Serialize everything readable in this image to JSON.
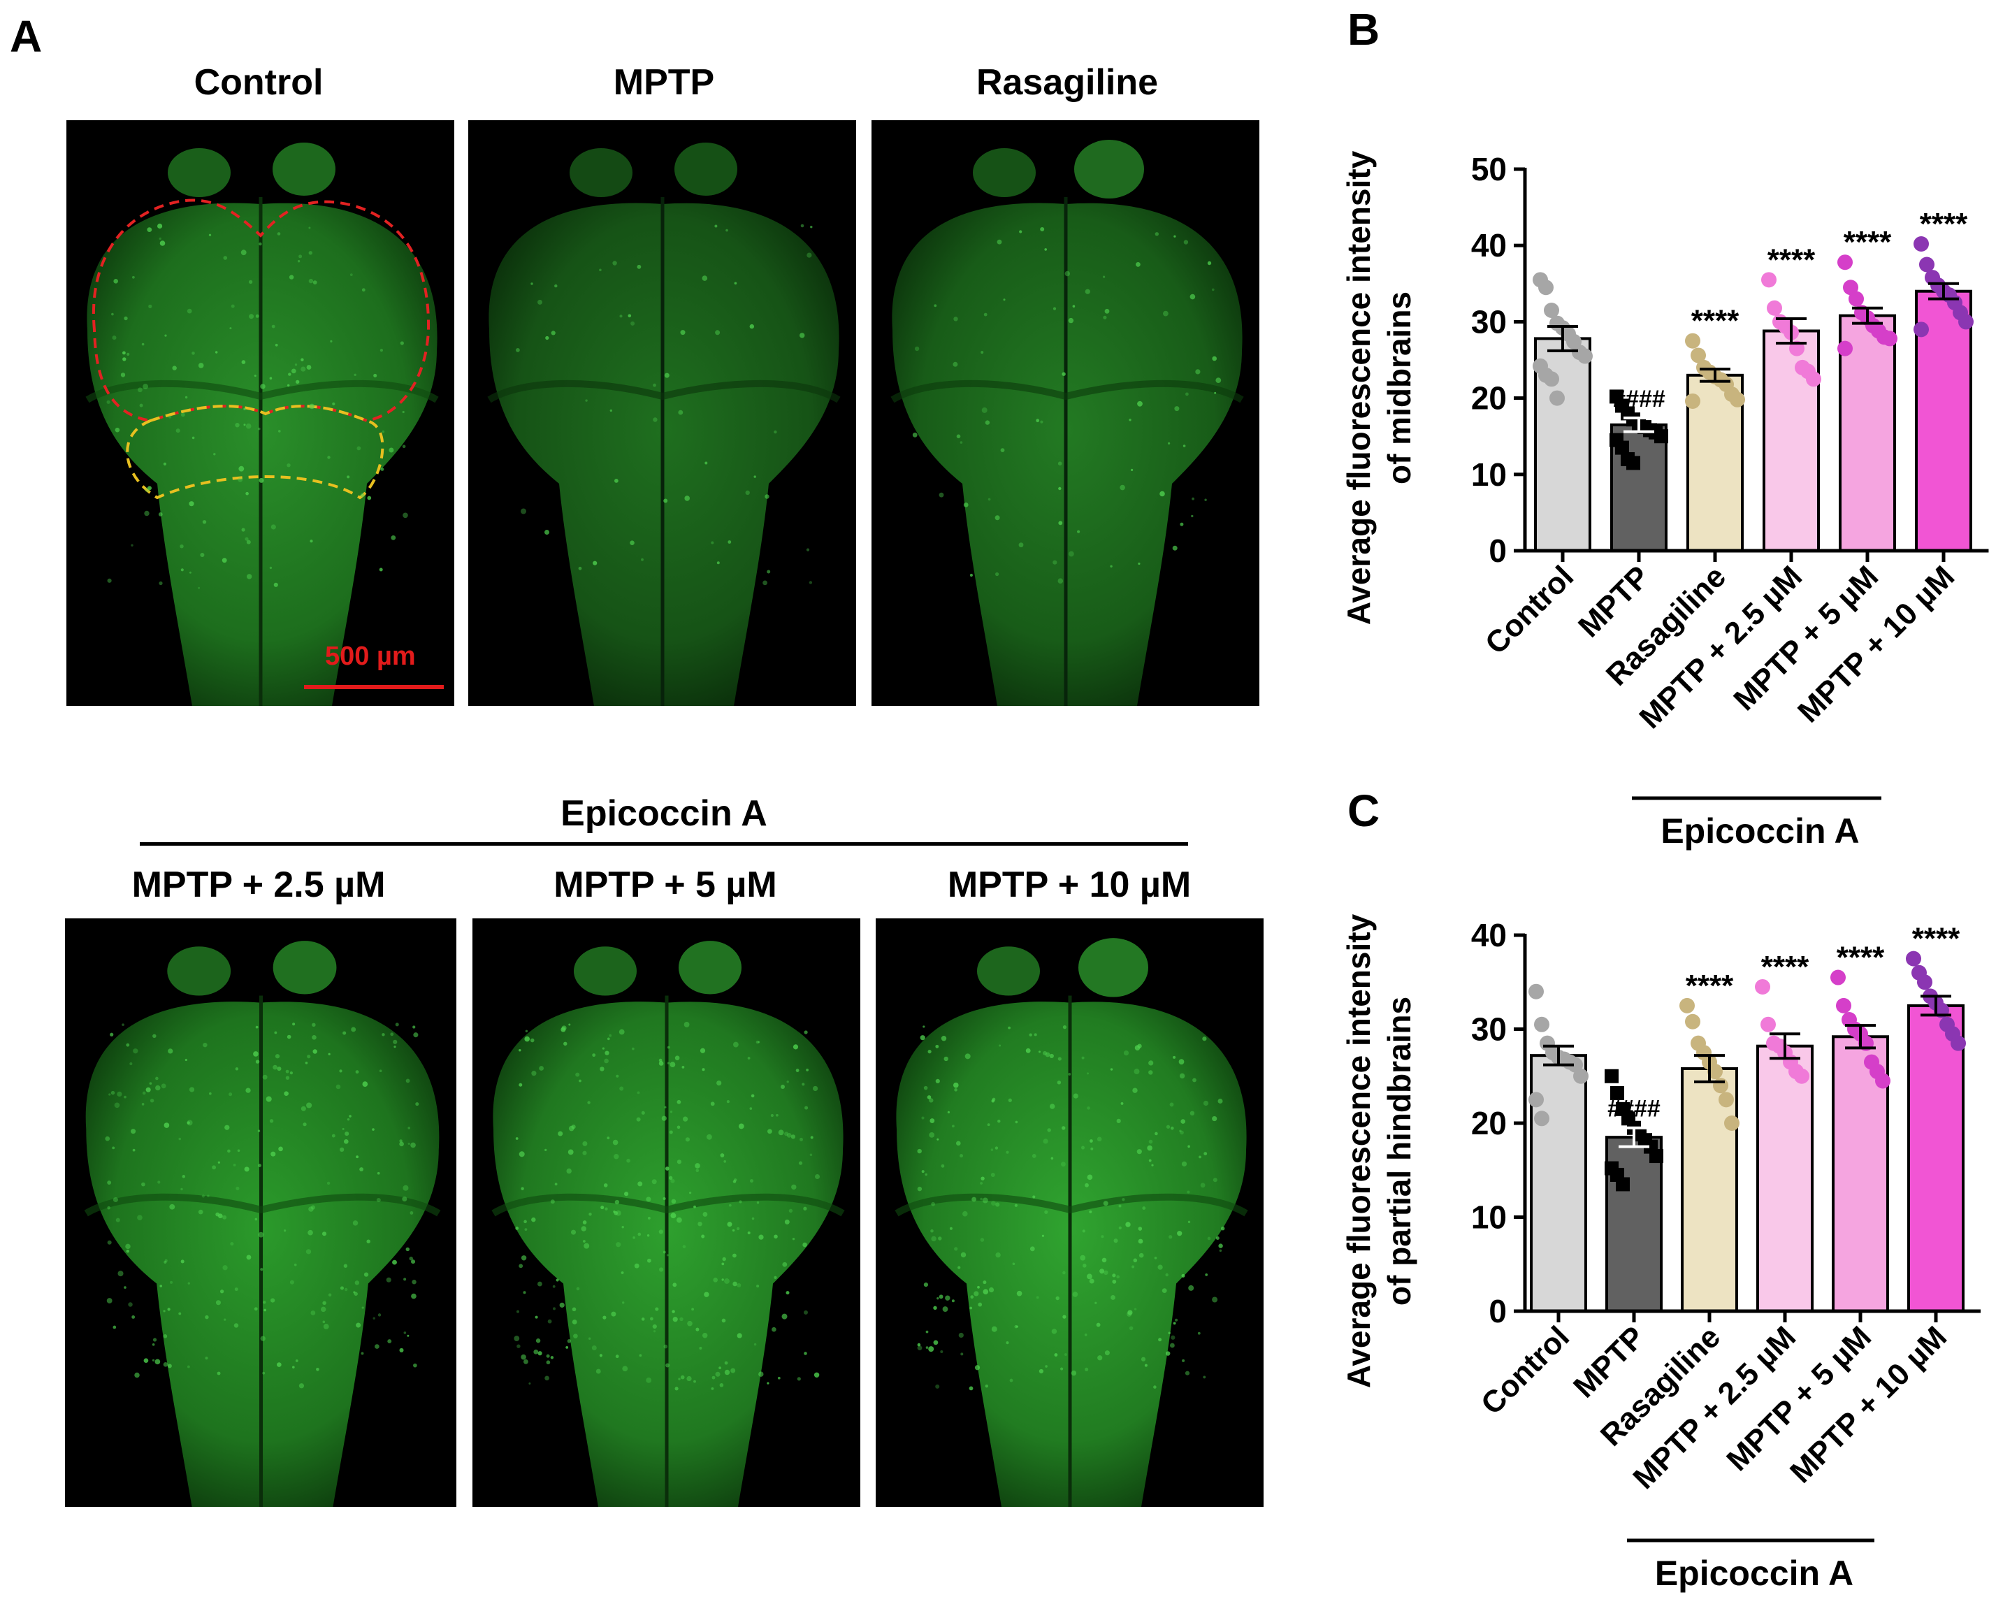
{
  "panels": {
    "a_letter": "A",
    "b_letter": "B",
    "c_letter": "C"
  },
  "images": {
    "top_titles": [
      "Control",
      "MPTP",
      "Rasagiline"
    ],
    "bottom_bracket_label": "Epicoccin A",
    "bottom_titles": [
      "MPTP + 2.5 µM",
      "MPTP + 5 µM",
      "MPTP + 10 µM"
    ],
    "scale_bar_label": "500 µm",
    "colors": {
      "fluorescence": "#2fa52f",
      "midbrain_outline": "#e32222",
      "hindbrain_outline": "#e8c020",
      "scale_bar": "#e21b1b"
    }
  },
  "chart_data": [
    {
      "type": "bar",
      "panel": "B",
      "categories": [
        "Control",
        "MPTP",
        "Rasagiline",
        "MPTP + 2.5 µM",
        "MPTP + 5 µM",
        "MPTP + 10 µM"
      ],
      "values": [
        27.8,
        16.5,
        23.0,
        28.8,
        30.8,
        34.0
      ],
      "errors": [
        1.6,
        0.9,
        0.8,
        1.6,
        1.0,
        1.0
      ],
      "points": [
        [
          35.5,
          34.5,
          31.5,
          29.8,
          29.2,
          28.4,
          27.4,
          26.0,
          25.5,
          24.2,
          23.0,
          22.5,
          20.0
        ],
        [
          20.2,
          19.0,
          18.0,
          17.2,
          16.5,
          16.2,
          15.8,
          15.5,
          15.0,
          14.5,
          13.5,
          12.0,
          11.5
        ],
        [
          27.5,
          25.6,
          24.0,
          23.4,
          22.8,
          22.4,
          21.8,
          20.5,
          19.8,
          19.6
        ],
        [
          35.5,
          31.8,
          30.0,
          29.4,
          28.6,
          26.5,
          24.0,
          23.5,
          22.5
        ],
        [
          37.8,
          34.5,
          33.0,
          31.2,
          30.5,
          29.5,
          28.8,
          28.0,
          27.8,
          26.5
        ],
        [
          40.2,
          37.5,
          35.8,
          34.8,
          34.0,
          33.5,
          32.5,
          31.2,
          30.0,
          29.0
        ]
      ],
      "significance": [
        "",
        "####",
        "****",
        "****",
        "****",
        "****"
      ],
      "ylabel_line1": "Average fluorescence intensity",
      "ylabel_line2": "of midbrains",
      "yticks": [
        "0",
        "10",
        "20",
        "30",
        "40",
        "50"
      ],
      "ylim": [
        0,
        50
      ],
      "group_label": "Epicoccin A",
      "bar_colors": [
        "#d7d7d7",
        "#616161",
        "#ede3c2",
        "#f9c8e9",
        "#f5a5e0",
        "#f155d4"
      ],
      "point_colors": [
        "#a6a6a6",
        "#000000",
        "#c8b47e",
        "#f07ad8",
        "#d53fc9",
        "#8b36b2"
      ],
      "point_shapes": [
        "circle",
        "square",
        "circle",
        "circle",
        "circle",
        "circle"
      ]
    },
    {
      "type": "bar",
      "panel": "C",
      "categories": [
        "Control",
        "MPTP",
        "Rasagiline",
        "MPTP + 2.5 µM",
        "MPTP + 5 µM",
        "MPTP + 10 µM"
      ],
      "values": [
        27.2,
        18.5,
        25.8,
        28.2,
        29.2,
        32.5
      ],
      "errors": [
        1.0,
        1.0,
        1.4,
        1.3,
        1.2,
        1.0
      ],
      "points": [
        [
          34.0,
          30.5,
          28.5,
          27.5,
          27.0,
          26.8,
          26.5,
          26.2,
          25.0,
          22.5,
          20.5
        ],
        [
          25.0,
          23.2,
          21.5,
          20.5,
          19.5,
          18.8,
          18.2,
          17.5,
          16.5,
          15.2,
          14.5,
          13.5
        ],
        [
          32.5,
          30.8,
          28.5,
          27.5,
          26.5,
          25.5,
          24.0,
          22.5,
          20.0
        ],
        [
          34.5,
          30.5,
          28.5,
          28.2,
          27.5,
          26.5,
          25.5,
          25.0
        ],
        [
          35.5,
          32.5,
          31.0,
          30.0,
          29.5,
          28.5,
          26.5,
          25.5,
          24.5
        ],
        [
          37.5,
          36.0,
          35.0,
          33.5,
          32.8,
          32.0,
          30.5,
          29.5,
          28.5
        ]
      ],
      "significance": [
        "",
        "####",
        "****",
        "****",
        "****",
        "****"
      ],
      "ylabel_line1": "Average fluorescence intensity",
      "ylabel_line2": "of partial hindbrains",
      "yticks": [
        "0",
        "10",
        "20",
        "30",
        "40"
      ],
      "ylim": [
        0,
        40
      ],
      "group_label": "Epicoccin A",
      "bar_colors": [
        "#d7d7d7",
        "#616161",
        "#ede3c2",
        "#f9c8e9",
        "#f5a5e0",
        "#f155d4"
      ],
      "point_colors": [
        "#a6a6a6",
        "#000000",
        "#c8b47e",
        "#f07ad8",
        "#d53fc9",
        "#8b36b2"
      ],
      "point_shapes": [
        "circle",
        "square",
        "circle",
        "circle",
        "circle",
        "circle"
      ]
    }
  ]
}
